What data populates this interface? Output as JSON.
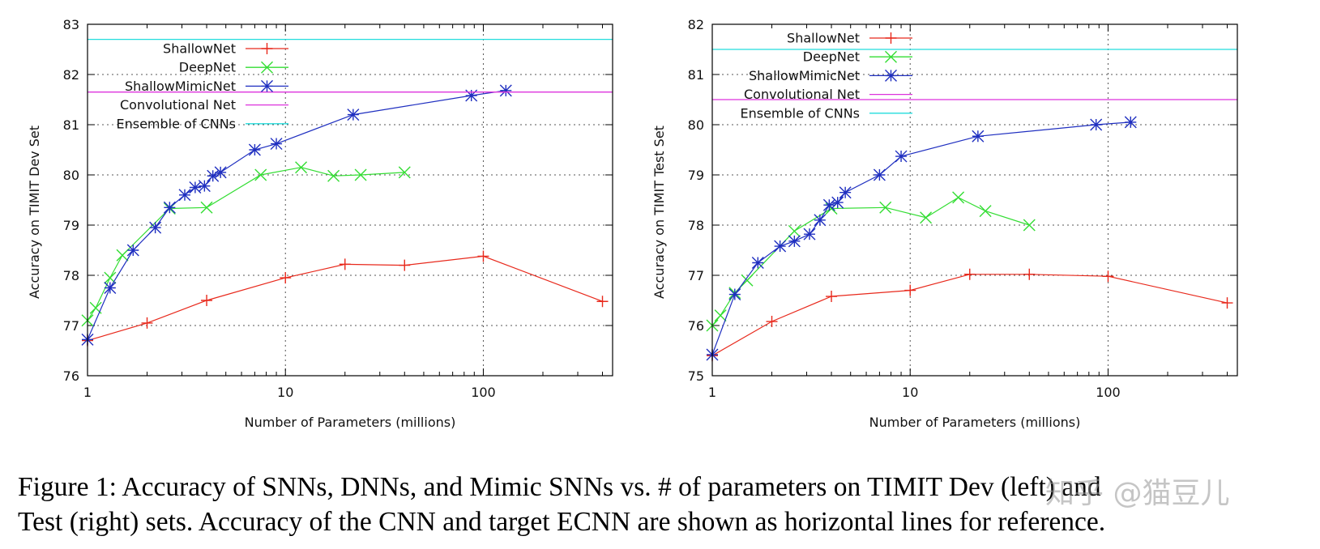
{
  "chart_data": [
    {
      "type": "line",
      "panel": "left",
      "xlabel": "Number of Parameters (millions)",
      "ylabel": "Accuracy on TIMIT Dev Set",
      "xscale": "log",
      "xlim": [
        1,
        450
      ],
      "ylim": [
        76,
        83
      ],
      "xticks": [
        1,
        10,
        100
      ],
      "xtick_labels": [
        "1",
        "10",
        "100"
      ],
      "yticks": [
        76,
        77,
        78,
        79,
        80,
        81,
        82,
        83
      ],
      "ytick_labels": [
        "76",
        "77",
        "78",
        "79",
        "80",
        "81",
        "82",
        "83"
      ],
      "grid": true,
      "legend_position": "top-left",
      "series": [
        {
          "name": "ShallowNet",
          "color": "#e8291c",
          "marker": "plus",
          "x": [
            1,
            2,
            4,
            10,
            20,
            40,
            100,
            400
          ],
          "y": [
            76.7,
            77.05,
            77.5,
            77.95,
            78.22,
            78.2,
            78.38,
            77.48
          ]
        },
        {
          "name": "DeepNet",
          "color": "#33dd33",
          "marker": "cross",
          "x": [
            1,
            1.1,
            1.3,
            1.5,
            2.6,
            4,
            7.5,
            12,
            17.5,
            24,
            40
          ],
          "y": [
            77.1,
            77.35,
            77.95,
            78.4,
            79.33,
            79.35,
            80.0,
            80.15,
            79.98,
            80.0,
            80.05
          ]
        },
        {
          "name": "ShallowMimicNet",
          "color": "#1f2fc0",
          "marker": "star",
          "x": [
            1,
            1.3,
            1.7,
            2.2,
            2.6,
            3.1,
            3.5,
            3.9,
            4.3,
            4.7,
            7,
            9,
            22,
            87,
            130
          ],
          "y": [
            76.72,
            77.75,
            78.5,
            78.95,
            79.35,
            79.6,
            79.75,
            79.78,
            79.98,
            80.05,
            80.5,
            80.62,
            81.2,
            81.58,
            81.68
          ]
        },
        {
          "name": "Convolutional Net",
          "color": "#dd33dd",
          "marker": "none",
          "hline": 81.65
        },
        {
          "name": "Ensemble of CNNs",
          "color": "#22dddd",
          "marker": "none",
          "hline": 82.7
        }
      ]
    },
    {
      "type": "line",
      "panel": "right",
      "xlabel": "Number of Parameters (millions)",
      "ylabel": "Accuracy on TIMIT Test Set",
      "xscale": "log",
      "xlim": [
        1,
        450
      ],
      "ylim": [
        75,
        82
      ],
      "xticks": [
        1,
        10,
        100
      ],
      "xtick_labels": [
        "1",
        "10",
        "100"
      ],
      "yticks": [
        75,
        76,
        77,
        78,
        79,
        80,
        81,
        82
      ],
      "ytick_labels": [
        "75",
        "76",
        "77",
        "78",
        "79",
        "80",
        "81",
        "82"
      ],
      "grid": true,
      "legend_position": "top-left",
      "series": [
        {
          "name": "ShallowNet",
          "color": "#e8291c",
          "marker": "plus",
          "x": [
            1,
            2,
            4,
            10,
            20,
            40,
            100,
            400
          ],
          "y": [
            75.4,
            76.08,
            76.58,
            76.7,
            77.02,
            77.02,
            76.98,
            76.45
          ]
        },
        {
          "name": "DeepNet",
          "color": "#33dd33",
          "marker": "cross",
          "x": [
            1,
            1.1,
            1.3,
            1.5,
            2.6,
            4,
            7.5,
            12,
            17.5,
            24,
            40
          ],
          "y": [
            76.0,
            76.2,
            76.65,
            76.9,
            77.88,
            78.33,
            78.35,
            78.15,
            78.55,
            78.28,
            78.0
          ]
        },
        {
          "name": "ShallowMimicNet",
          "color": "#1f2fc0",
          "marker": "star",
          "x": [
            1,
            1.3,
            1.7,
            2.2,
            2.6,
            3.1,
            3.5,
            3.9,
            4.3,
            4.7,
            7,
            9,
            22,
            87,
            130
          ],
          "y": [
            75.42,
            76.62,
            77.25,
            77.58,
            77.68,
            77.82,
            78.1,
            78.4,
            78.45,
            78.65,
            79.0,
            79.37,
            79.77,
            80.0,
            80.05
          ]
        },
        {
          "name": "Convolutional Net",
          "color": "#dd33dd",
          "marker": "none",
          "hline": 80.5
        },
        {
          "name": "Ensemble of CNNs",
          "color": "#22dddd",
          "marker": "none",
          "hline": 81.5
        }
      ]
    }
  ],
  "caption": {
    "line1": "Figure 1: Accuracy of SNNs, DNNs, and Mimic SNNs vs. # of parameters on TIMIT Dev (left) and",
    "line2": "Test (right) sets. Accuracy of the CNN and target ECNN are shown as horizontal lines for reference."
  },
  "watermark": "知乎 @猫豆儿"
}
